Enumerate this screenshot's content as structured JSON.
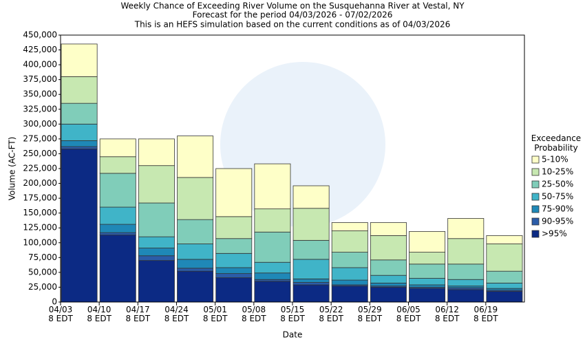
{
  "chart_data": {
    "type": "stacked_bar",
    "title": [
      "Weekly Chance of Exceeding River Volume on the Susquehanna River at Vestal, NY",
      "Forecast for the period 04/03/2026 - 07/02/2026",
      "This is an HEFS simulation based on the current conditions as of 04/03/2026"
    ],
    "xlabel": "Date",
    "ylabel": "Volume (AC-FT)",
    "legend_title": "Exceedance Probability",
    "legend": "right",
    "categories": [
      "04/03\n8 EDT",
      "04/10\n8 EDT",
      "04/17\n8 EDT",
      "04/24\n8 EDT",
      "05/01\n8 EDT",
      "05/08\n8 EDT",
      "05/15\n8 EDT",
      "05/22\n8 EDT",
      "05/29\n8 EDT",
      "06/05\n8 EDT",
      "06/12\n8 EDT",
      "06/19\n8 EDT"
    ],
    "series": [
      {
        "name": ">95%",
        "color": "#0c2a84",
        "values": [
          258000,
          113000,
          70000,
          52000,
          41000,
          35000,
          29000,
          27000,
          25000,
          23000,
          21000,
          18000
        ]
      },
      {
        "name": "90-95%",
        "color": "#2b5ca8",
        "values": [
          4000,
          4000,
          8000,
          5000,
          7000,
          3000,
          4000,
          2000,
          2000,
          2000,
          3000,
          2000
        ]
      },
      {
        "name": "75-90%",
        "color": "#1f88b7",
        "values": [
          10000,
          14000,
          13000,
          15000,
          10000,
          11000,
          6000,
          8000,
          5000,
          4000,
          3000,
          3000
        ]
      },
      {
        "name": "50-75%",
        "color": "#40b4c8",
        "values": [
          28000,
          29000,
          19000,
          26000,
          24000,
          18000,
          33000,
          21000,
          13000,
          11000,
          11000,
          9000
        ]
      },
      {
        "name": "25-50%",
        "color": "#80cdb9",
        "values": [
          35000,
          57000,
          57000,
          41000,
          25000,
          51000,
          32000,
          26000,
          26000,
          24000,
          26000,
          20000
        ]
      },
      {
        "name": "10-25%",
        "color": "#c7e8b1",
        "values": [
          45000,
          28000,
          63000,
          71000,
          37000,
          39000,
          54000,
          36000,
          41000,
          20000,
          43000,
          46000
        ]
      },
      {
        "name": "5-10%",
        "color": "#feffc8",
        "values": [
          55000,
          30000,
          45000,
          70000,
          81000,
          76000,
          38000,
          14000,
          22000,
          35000,
          34000,
          14000
        ]
      }
    ],
    "ylim": [
      0,
      450000
    ],
    "yticks": [
      0,
      {
        "value": 25000,
        "label": "25,000"
      },
      {
        "value": 50000,
        "label": "50,000"
      },
      {
        "value": 75000,
        "label": "75,000"
      },
      {
        "value": 100000,
        "label": "100,000"
      },
      {
        "value": 125000,
        "label": "125,000"
      },
      {
        "value": 150000,
        "label": "150,000"
      },
      {
        "value": 175000,
        "label": "175,000"
      },
      {
        "value": 200000,
        "label": "200,000"
      },
      {
        "value": 225000,
        "label": "225,000"
      },
      {
        "value": 250000,
        "label": "250,000"
      },
      {
        "value": 275000,
        "label": "275,000"
      },
      {
        "value": 300000,
        "label": "300,000"
      },
      {
        "value": 325000,
        "label": "325,000"
      },
      {
        "value": 350000,
        "label": "350,000"
      },
      {
        "value": 375000,
        "label": "375,000"
      },
      {
        "value": 400000,
        "label": "400,000"
      },
      {
        "value": 425000,
        "label": "425,000"
      },
      {
        "value": 450000,
        "label": "450,000"
      }
    ]
  }
}
